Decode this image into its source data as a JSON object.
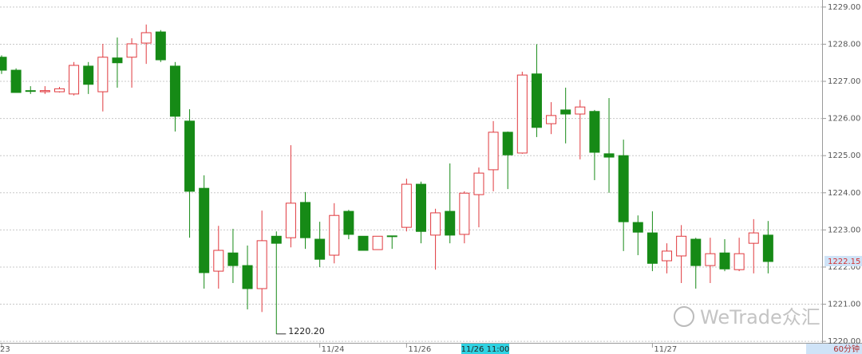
{
  "chart_data": {
    "type": "candlestick",
    "categories": [
      "23",
      null,
      null,
      null,
      null,
      null,
      null,
      null,
      null,
      null,
      null,
      null,
      null,
      null,
      null,
      null,
      null,
      null,
      null,
      null,
      null,
      null,
      "11/24",
      null,
      null,
      null,
      null,
      null,
      "11/26",
      null,
      null,
      null,
      null,
      null,
      null,
      null,
      null,
      null,
      null,
      null,
      null,
      null,
      null,
      null,
      null,
      "11/27",
      null,
      null,
      null,
      null,
      null,
      null,
      null,
      null
    ],
    "series": [
      {
        "up_color": "#e0393e",
        "down_color": "#168a16",
        "open": [
          1227.65,
          1227.3,
          1226.75,
          1226.72,
          1226.72,
          1226.66,
          1227.41,
          1226.72,
          1227.63,
          1227.65,
          1228.03,
          1228.33,
          1227.41,
          1225.93,
          1224.12,
          1221.89,
          1222.38,
          1222.04,
          1221.42,
          1222.83,
          1222.79,
          1223.74,
          1222.75,
          1222.32,
          1223.5,
          1222.83,
          1222.47,
          1222.84,
          1223.07,
          1224.23,
          1222.86,
          1223.5,
          1222.88,
          1223.95,
          1224.62,
          1225.63,
          1225.07,
          1227.2,
          1225.86,
          1226.23,
          1226.12,
          1226.19,
          1225.05,
          1225.0,
          1223.2,
          1222.92,
          1222.17,
          1222.3,
          1222.75,
          1222.04,
          1222.38,
          1221.93,
          1222.64,
          1222.86
        ],
        "high": [
          1227.7,
          1227.35,
          1226.87,
          1226.87,
          1226.85,
          1227.52,
          1227.52,
          1228.01,
          1228.18,
          1228.16,
          1228.53,
          1228.38,
          1227.52,
          1226.25,
          1224.47,
          1223.11,
          1223.03,
          1222.58,
          1223.52,
          1222.96,
          1225.28,
          1224.02,
          1223.22,
          1223.72,
          1223.54,
          1222.83,
          1222.83,
          1222.84,
          1224.38,
          1224.3,
          1223.57,
          1224.79,
          1224.04,
          1224.68,
          1225.93,
          1225.65,
          1227.26,
          1228.0,
          1226.44,
          1226.83,
          1226.5,
          1226.23,
          1226.55,
          1225.43,
          1223.39,
          1223.5,
          1222.64,
          1223.13,
          1222.79,
          1222.79,
          1222.75,
          1222.79,
          1223.29,
          1223.24
        ],
        "low": [
          1227.2,
          1226.7,
          1226.66,
          1226.66,
          1226.7,
          1226.62,
          1226.66,
          1226.19,
          1226.83,
          1226.83,
          1227.47,
          1227.52,
          1225.65,
          1222.79,
          1221.42,
          1221.42,
          1221.57,
          1220.86,
          1220.79,
          1220.2,
          1222.53,
          1222.49,
          1222.0,
          1222.1,
          1222.75,
          1222.45,
          1222.47,
          1222.49,
          1222.96,
          1222.64,
          1221.93,
          1222.64,
          1222.64,
          1223.07,
          1224.04,
          1224.1,
          1225.05,
          1225.5,
          1225.58,
          1225.33,
          1224.9,
          1224.34,
          1224.0,
          1222.43,
          1222.32,
          1221.89,
          1221.83,
          1221.57,
          1221.42,
          1221.57,
          1221.89,
          1221.89,
          1221.83,
          1221.83
        ],
        "close": [
          1227.3,
          1226.7,
          1226.74,
          1226.75,
          1226.8,
          1227.43,
          1226.92,
          1227.65,
          1227.5,
          1228.01,
          1228.31,
          1227.58,
          1226.06,
          1224.04,
          1221.85,
          1222.45,
          1222.04,
          1221.42,
          1222.71,
          1222.64,
          1223.72,
          1222.79,
          1222.21,
          1223.39,
          1222.88,
          1222.45,
          1222.83,
          1222.83,
          1224.23,
          1222.96,
          1223.46,
          1222.86,
          1223.99,
          1224.53,
          1225.63,
          1225.02,
          1227.17,
          1225.76,
          1226.08,
          1226.12,
          1226.31,
          1225.09,
          1224.96,
          1223.22,
          1222.94,
          1222.1,
          1222.43,
          1222.83,
          1222.04,
          1222.36,
          1221.95,
          1222.36,
          1222.92,
          1222.15
        ]
      }
    ],
    "ylim": [
      1219.96,
      1229.19
    ],
    "yticks": [
      {
        "value": 1220,
        "label": "1220.00"
      },
      {
        "value": 1221,
        "label": "1221.00"
      },
      {
        "value": 1222,
        "label": "1222.00"
      },
      {
        "value": 1223,
        "label": "1223.00"
      },
      {
        "value": 1224,
        "label": "1224.00"
      },
      {
        "value": 1225,
        "label": "1225.00"
      },
      {
        "value": 1226,
        "label": "1226.00"
      },
      {
        "value": 1227,
        "label": "1227.00"
      },
      {
        "value": 1228,
        "label": "1228.00"
      },
      {
        "value": 1229,
        "label": "1229.00"
      }
    ],
    "grid": true,
    "last_price": 1222.15,
    "low_annotation": {
      "value": 1220.2,
      "label": "1220.20"
    },
    "crosshair_label": "11/26 11:00",
    "period": "60分钟",
    "watermark": "WeTrade众汇"
  }
}
